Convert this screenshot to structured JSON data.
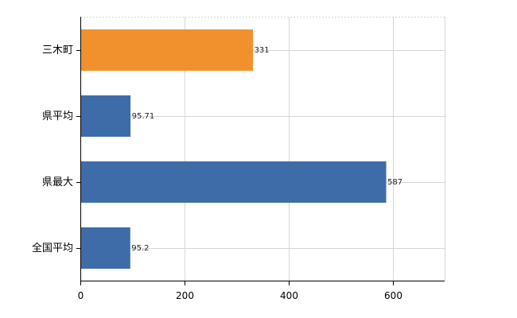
{
  "chart_data": {
    "type": "bar",
    "orientation": "horizontal",
    "categories": [
      "三木町",
      "県平均",
      "県最大",
      "全国平均"
    ],
    "values": [
      331,
      95.71,
      587,
      95.2
    ],
    "value_labels": [
      "331",
      "95.71",
      "587",
      "95.2"
    ],
    "bar_colors": [
      "#f0912d",
      "#3e6ca8",
      "#3e6ca8",
      "#3e6ca8"
    ],
    "highlight_color": "#f0912d",
    "base_color": "#3e6ca8",
    "xlim": [
      0,
      700
    ],
    "x_ticks": [
      0,
      200,
      400,
      600
    ],
    "x_tick_labels": [
      "0",
      "200",
      "400",
      "600"
    ],
    "title": "",
    "xlabel": "",
    "ylabel": "",
    "grid": true,
    "legend": "none"
  }
}
